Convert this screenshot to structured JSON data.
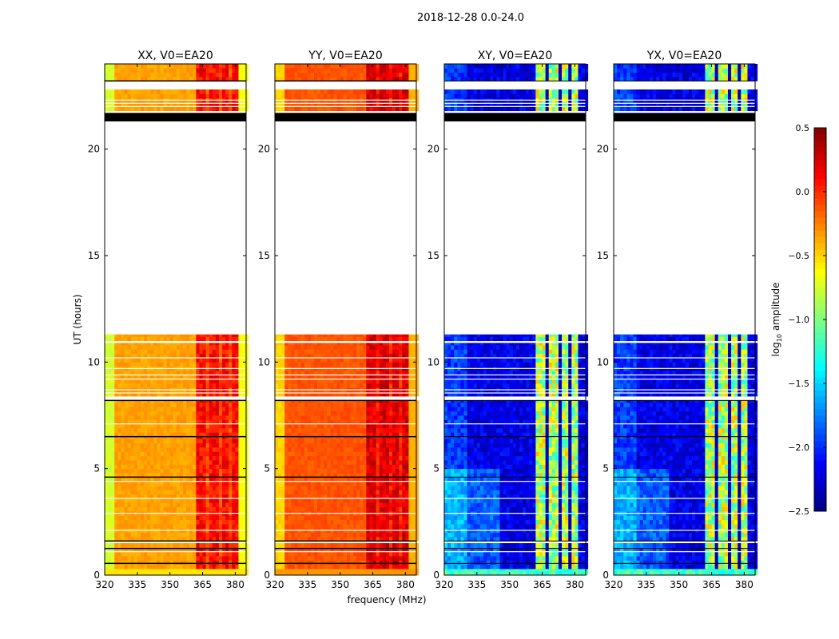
{
  "chart_data": {
    "type": "heatmap",
    "title": "2018-12-28 0.0-24.0",
    "xlabel": "frequency (MHz)",
    "ylabel": "UT (hours)",
    "xlim": [
      320,
      385
    ],
    "ylim": [
      0,
      24
    ],
    "xticks": [
      320,
      335,
      350,
      365,
      380
    ],
    "yticks": [
      0,
      5,
      10,
      15,
      20
    ],
    "colorbar": {
      "label_prefix": "log",
      "label_sub": "10",
      "label_suffix": " amplitude",
      "colormap": "jet",
      "range": [
        -2.5,
        0.5
      ],
      "ticks": [
        "0.5",
        "0.0",
        "−0.5",
        "−1.0",
        "−1.5",
        "−2.0",
        "−2.5"
      ],
      "tick_values": [
        0.5,
        0.0,
        -0.5,
        -1.0,
        -1.5,
        -2.0,
        -2.5
      ]
    },
    "data_time_segments_hours": [
      [
        0.0,
        0.3
      ],
      [
        0.3,
        1.5
      ],
      [
        1.6,
        4.6
      ],
      [
        4.6,
        6.5
      ],
      [
        6.5,
        8.2
      ],
      [
        8.4,
        10.9
      ],
      [
        11.0,
        11.3
      ],
      [
        21.8,
        22.8
      ],
      [
        23.2,
        24.0
      ]
    ],
    "flagged_black_segments_hours": [
      [
        21.3,
        21.7
      ]
    ],
    "black_lines_hours": [
      0.55,
      1.25,
      1.6,
      4.6,
      6.5,
      8.2,
      23.2
    ],
    "white_lines_hours": [
      1.1,
      2.1,
      2.9,
      3.6,
      4.4,
      7.1,
      8.55,
      8.7,
      9.2,
      9.4,
      9.7,
      10.2,
      22.0,
      22.15,
      22.3
    ],
    "panels": [
      {
        "title": "XX, V0=EA20",
        "base": -0.35,
        "edge": -0.75,
        "rfi": 0.0,
        "rfi_gap": -0.05,
        "cross": false
      },
      {
        "title": "YY, V0=EA20",
        "base": -0.12,
        "edge": -0.5,
        "rfi": 0.12,
        "rfi_gap": 0.02,
        "cross": false
      },
      {
        "title": "XY, V0=EA20",
        "base": -2.2,
        "edge": -2.0,
        "rfi": -0.95,
        "rfi_gap": -2.3,
        "cross": true
      },
      {
        "title": "YX, V0=EA20",
        "base": -2.2,
        "edge": -2.0,
        "rfi": -0.95,
        "rfi_gap": -2.3,
        "cross": true
      }
    ],
    "rfi_channels_mhz": [
      [
        362,
        366
      ],
      [
        368,
        372
      ],
      [
        373.5,
        377.5
      ],
      [
        378.5,
        382
      ]
    ]
  }
}
